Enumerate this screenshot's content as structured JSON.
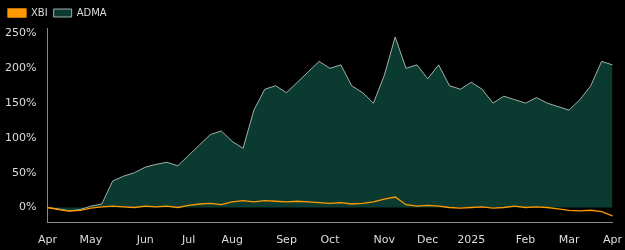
{
  "chart_data": {
    "type": "line",
    "categories": [
      "Apr",
      null,
      null,
      null,
      "May",
      null,
      null,
      null,
      null,
      "Jun",
      null,
      null,
      null,
      "Jul",
      null,
      null,
      null,
      "Aug",
      null,
      null,
      null,
      null,
      "Sep",
      null,
      null,
      null,
      "Oct",
      null,
      null,
      null,
      null,
      "Nov",
      null,
      null,
      null,
      "Dec",
      null,
      null,
      null,
      "2025",
      null,
      null,
      null,
      null,
      "Feb",
      null,
      null,
      null,
      "Mar",
      null,
      null,
      null,
      "Apr"
    ],
    "series": [
      {
        "name": "ADMA",
        "color": "#0b3b30",
        "values": [
          0,
          -2,
          -5,
          -3,
          2,
          5,
          38,
          45,
          50,
          58,
          62,
          65,
          60,
          75,
          90,
          105,
          110,
          95,
          85,
          140,
          170,
          175,
          165,
          180,
          195,
          210,
          200,
          205,
          175,
          165,
          150,
          190,
          245,
          200,
          205,
          185,
          205,
          175,
          170,
          180,
          170,
          150,
          160,
          155,
          150,
          158,
          150,
          145,
          140,
          155,
          175,
          210,
          205
        ]
      },
      {
        "name": "XBI",
        "color": "#ff9900",
        "values": [
          0,
          -3,
          -5,
          -4,
          -1,
          1,
          2,
          1,
          0,
          2,
          1,
          2,
          0,
          3,
          5,
          6,
          4,
          8,
          10,
          8,
          10,
          9,
          8,
          9,
          8,
          7,
          6,
          7,
          5,
          6,
          8,
          12,
          15,
          4,
          2,
          3,
          2,
          0,
          -1,
          0,
          1,
          -1,
          0,
          2,
          0,
          1,
          0,
          -2,
          -4,
          -5,
          -4,
          -6,
          -12
        ]
      }
    ],
    "ylim": [
      -22,
      258
    ],
    "yticks": [
      {
        "value": 0,
        "label": "0%"
      },
      {
        "value": 50,
        "label": "50%"
      },
      {
        "value": 100,
        "label": "100%"
      },
      {
        "value": 150,
        "label": "150%"
      },
      {
        "value": 200,
        "label": "200%"
      },
      {
        "value": 250,
        "label": "250%"
      }
    ],
    "grid": false,
    "legend": "upper left"
  }
}
